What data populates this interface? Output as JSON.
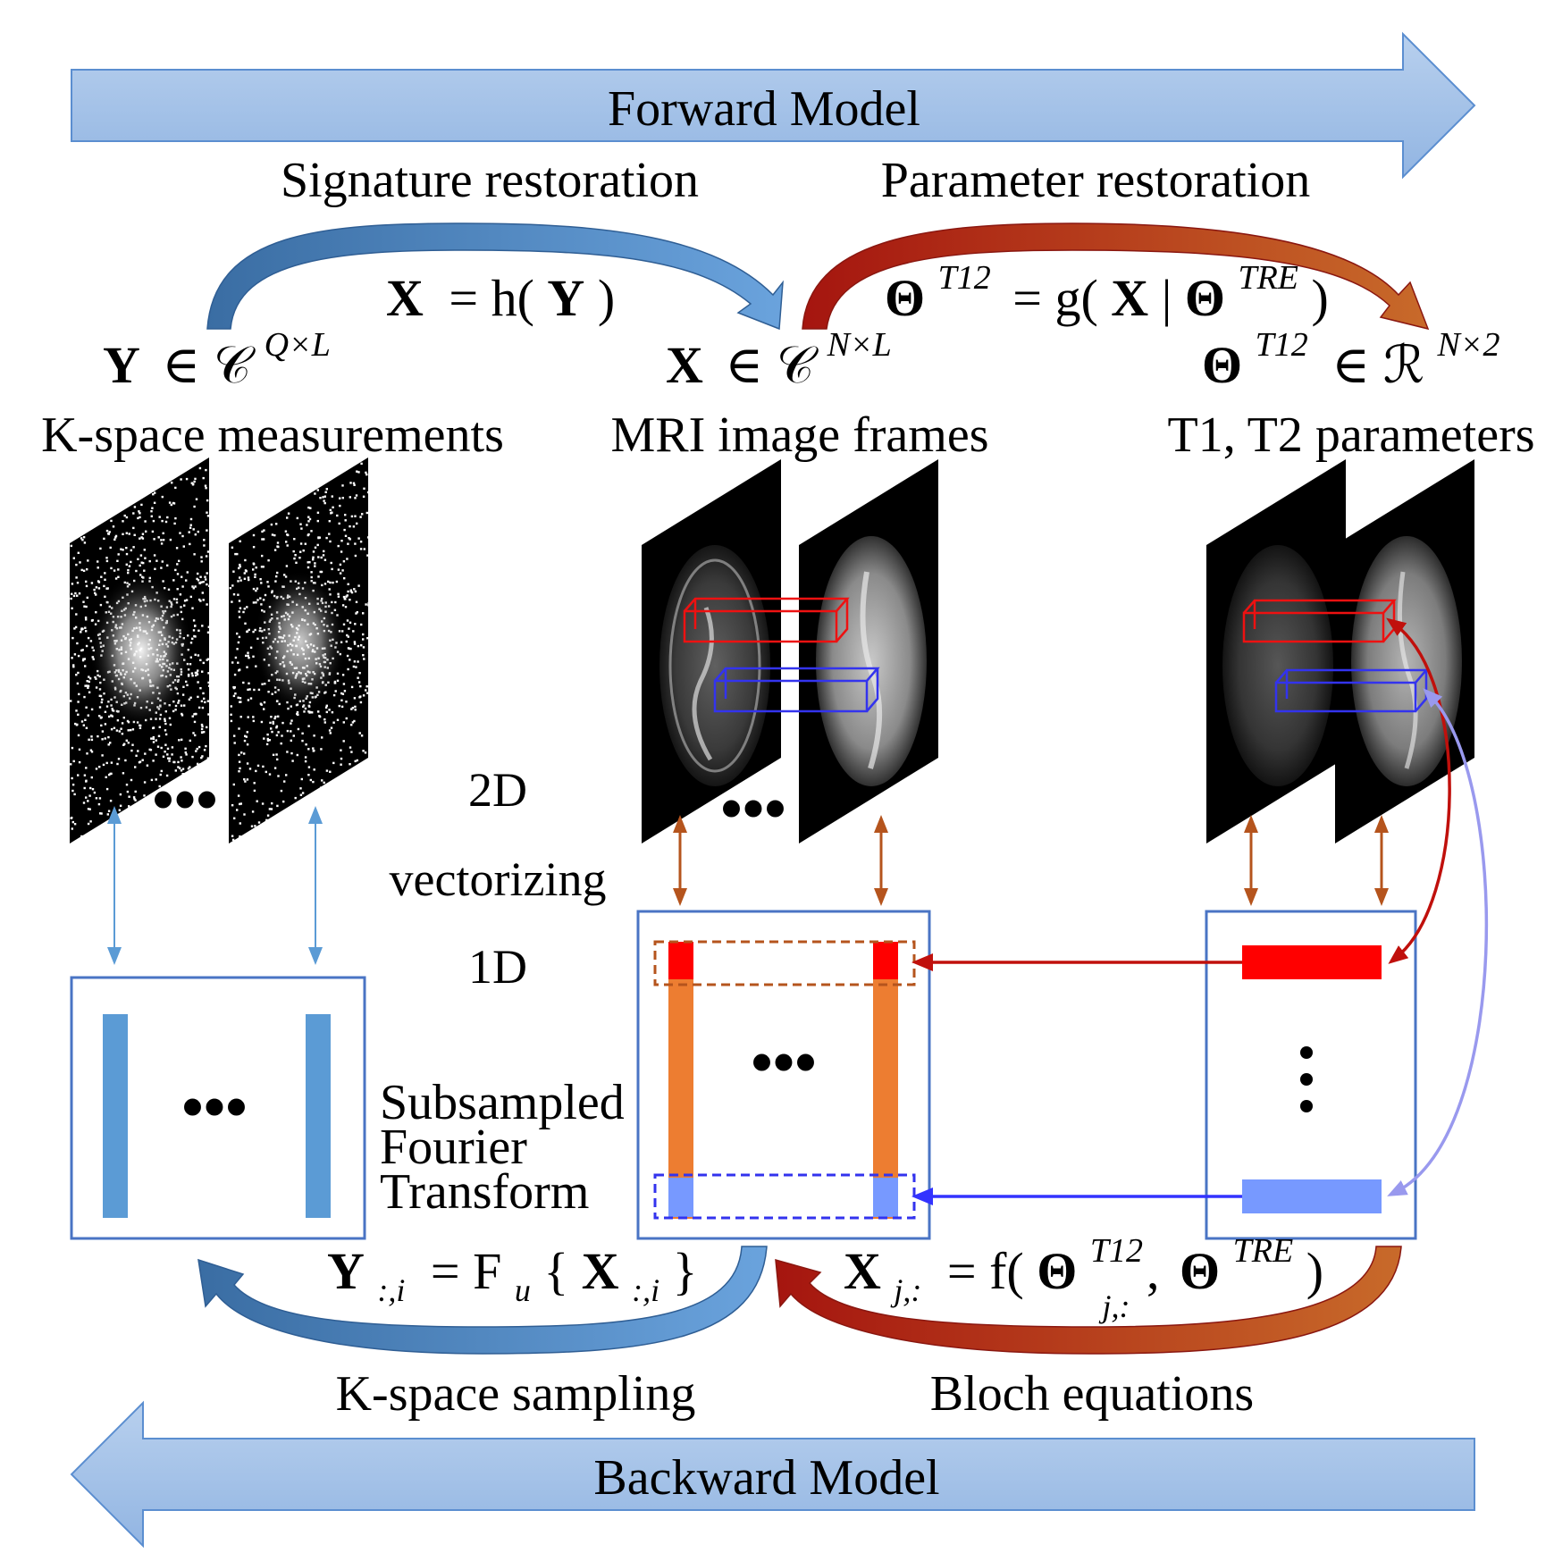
{
  "forward_arrow_label": "Forward Model",
  "backward_arrow_label": "Backward Model",
  "process_labels": {
    "signature": "Signature restoration",
    "parameter": "Parameter restoration",
    "kspace_sampling": "K-space sampling",
    "bloch": "Bloch equations"
  },
  "equations": {
    "signature": {
      "lhs": "X",
      "rest": "= h(",
      "arg": "Y",
      "close": ")"
    },
    "parameter": {
      "theta": "Θ",
      "sup": "T12",
      "eq": "= g(",
      "x": "X",
      "bar": "|",
      "theta2": "Θ",
      "sup2": "TRE",
      "close": ")"
    },
    "sampling": {
      "y": "Y",
      "sub": ":,i",
      "eq": "= F",
      "usub": "u",
      "brace": "{",
      "x": "X",
      "xsub": ":,i",
      "close": "}"
    },
    "bloch": {
      "x": "X",
      "xsub": "j,:",
      "eq": "= f(",
      "theta": "Θ",
      "tsup": "T12",
      "tsub": "j,:",
      "comma": ",",
      "theta2": "Θ",
      "sup2": "TRE",
      "close": ")"
    }
  },
  "domains": {
    "kspace": {
      "var": "Y",
      "in": "∈ 𝒞",
      "sup": "Q×L",
      "label": "K-space measurements"
    },
    "images": {
      "var": "X",
      "in": "∈ 𝒞",
      "sup": "N×L",
      "label": "MRI image frames"
    },
    "params": {
      "var": "Θ",
      "sup1": "T12",
      "in": "∈ ℛ",
      "sup": "N×2",
      "label": "T1, T2 parameters"
    }
  },
  "middle_labels": {
    "dim2": "2D",
    "vectorizing": "vectorizing",
    "dim1": "1D",
    "fourier1": "Subsampled",
    "fourier2": "Fourier",
    "fourier3": "Transform"
  },
  "ellipsis": "•••",
  "colors": {
    "arrow_blue": "#a4c2e6",
    "arrow_blue_edge": "#5b8ed0",
    "curve_blue": "#4a7fb5",
    "curve_red": "#a81d12",
    "bar_blue": "#5b9bd5",
    "bar_orange": "#ed7d31",
    "red": "#ff0000",
    "light_blue": "#7799ff",
    "dark_blue": "#3333ff",
    "brown": "#b5541d",
    "box_border": "#4a74c4"
  }
}
